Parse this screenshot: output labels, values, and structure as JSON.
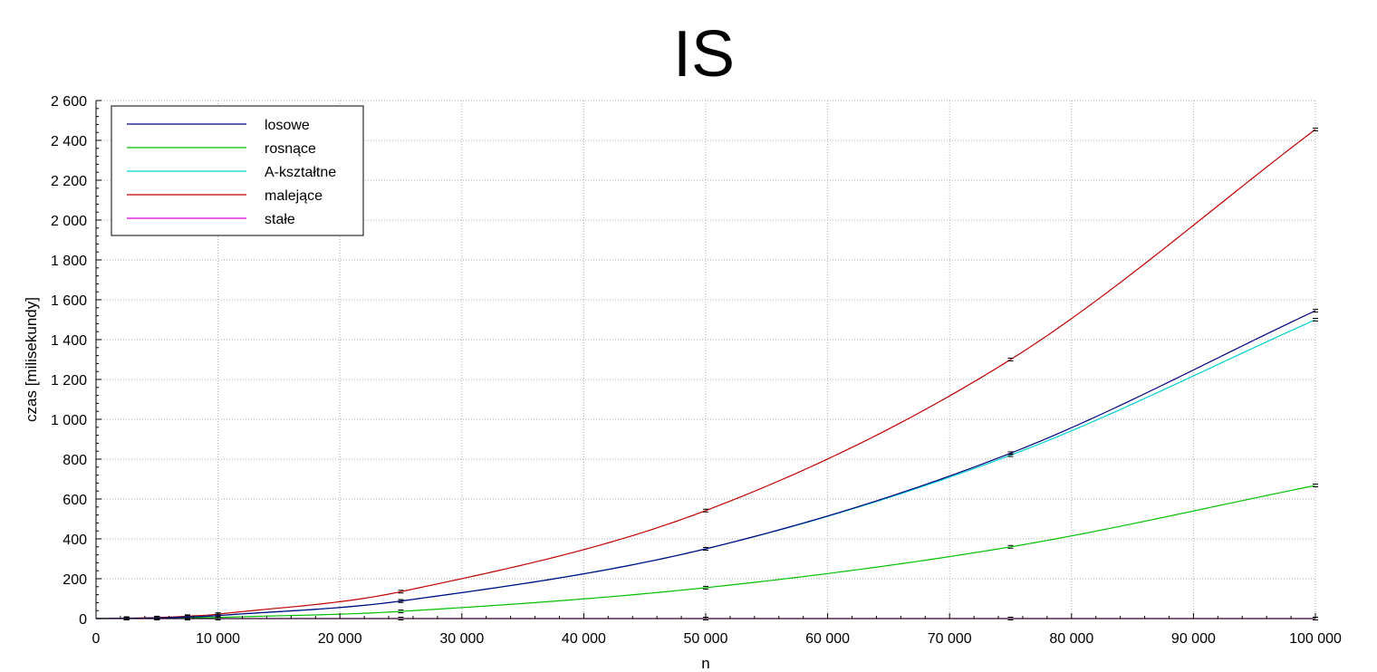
{
  "chart_data": {
    "type": "line",
    "title": "IS",
    "xlabel": "n",
    "ylabel": "czas [milisekundy]",
    "xlim": [
      0,
      100000
    ],
    "ylim": [
      0,
      2600
    ],
    "x_ticks": [
      0,
      10000,
      20000,
      30000,
      40000,
      50000,
      60000,
      70000,
      80000,
      90000,
      100000
    ],
    "x_tick_labels": [
      "0",
      "10 000",
      "20 000",
      "30 000",
      "40 000",
      "50 000",
      "60 000",
      "70 000",
      "80 000",
      "90 000",
      "100 000"
    ],
    "y_ticks": [
      0,
      200,
      400,
      600,
      800,
      1000,
      1200,
      1400,
      1600,
      1800,
      2000,
      2200,
      2400,
      2600
    ],
    "y_tick_labels": [
      "0",
      "200",
      "400",
      "600",
      "800",
      "1 000",
      "1 200",
      "1 400",
      "1 600",
      "1 800",
      "2 000",
      "2 200",
      "2 400",
      "2 600"
    ],
    "grid": true,
    "legend_position": "top-left",
    "series": [
      {
        "name": "losowe",
        "color": "#00007f",
        "x": [
          0,
          2500,
          5000,
          7500,
          10000,
          25000,
          50000,
          75000,
          100000
        ],
        "y": [
          0,
          1,
          3,
          8,
          15,
          88,
          350,
          830,
          1545
        ]
      },
      {
        "name": "rosnące",
        "color": "#00c000",
        "x": [
          0,
          2500,
          5000,
          7500,
          10000,
          25000,
          50000,
          75000,
          100000
        ],
        "y": [
          0,
          0.5,
          1.5,
          3,
          6,
          36,
          155,
          360,
          668
        ]
      },
      {
        "name": "A-kształtne",
        "color": "#00d0d0",
        "x": [
          0,
          2500,
          5000,
          7500,
          10000,
          25000,
          50000,
          75000,
          100000
        ],
        "y": [
          0,
          1,
          3,
          8,
          15,
          88,
          350,
          820,
          1500
        ]
      },
      {
        "name": "malejące",
        "color": "#c00000",
        "x": [
          0,
          2500,
          5000,
          7500,
          10000,
          25000,
          50000,
          75000,
          100000
        ],
        "y": [
          0,
          2,
          5,
          12,
          22,
          135,
          542,
          1300,
          2455
        ]
      },
      {
        "name": "stałe",
        "color": "#e000e0",
        "x": [
          0,
          2500,
          5000,
          7500,
          10000,
          25000,
          50000,
          75000,
          100000
        ],
        "y": [
          0,
          0,
          0,
          0,
          0,
          0,
          0,
          0,
          0
        ]
      }
    ]
  }
}
